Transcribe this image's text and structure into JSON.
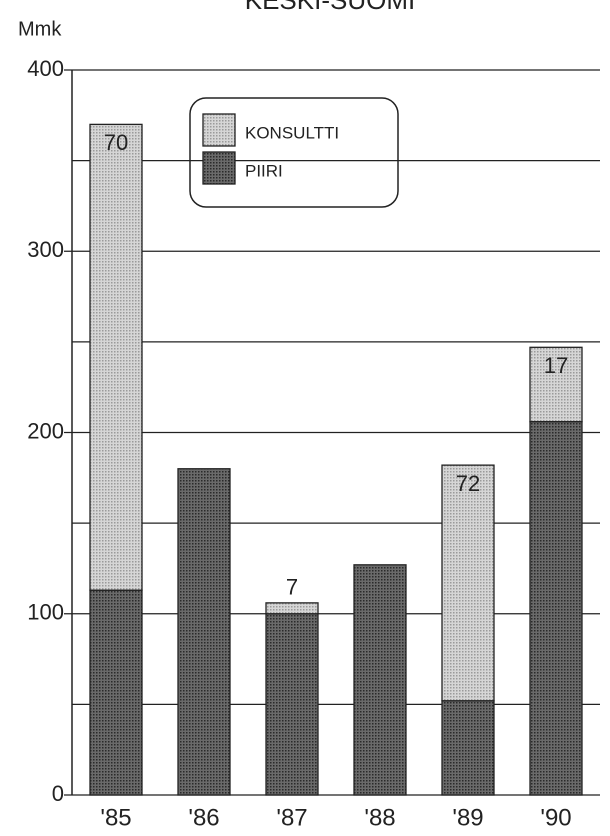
{
  "chart_data": {
    "type": "stacked_bar",
    "title": "KESKI-SUOMI",
    "ylabel": "Mmk",
    "categories": [
      "'85",
      "'86",
      "'87",
      "'88",
      "'89",
      "'90"
    ],
    "series": [
      {
        "name": "PIIRI",
        "color": "#5a5a5a",
        "values": [
          113,
          180,
          100,
          127,
          52,
          206
        ]
      },
      {
        "name": "KONSULTTI",
        "color": "#c9c9c9",
        "values": [
          257,
          0,
          6,
          0,
          130,
          41
        ]
      }
    ],
    "percent_labels": [
      70,
      null,
      7,
      null,
      72,
      17
    ],
    "ylim": [
      0,
      400
    ],
    "yticks": [
      0,
      100,
      200,
      300,
      400
    ],
    "minor_yticks": [
      50,
      150,
      250,
      350
    ],
    "grid": true
  }
}
